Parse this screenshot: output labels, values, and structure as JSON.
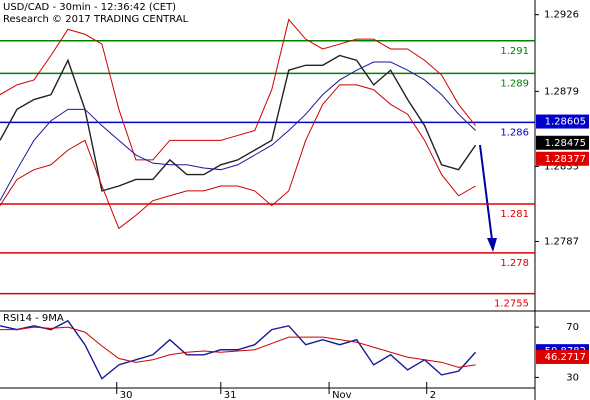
{
  "chart_data": [
    {
      "type": "line",
      "title": "USD/CAD - 30min - 12:36:42 (CET)",
      "subtitle": "Research © 2017 TRADING CENTRAL",
      "x": [
        0,
        8,
        16,
        24,
        32,
        40,
        48,
        56,
        64,
        72,
        80,
        88,
        96,
        104,
        112,
        120,
        128,
        136,
        144,
        152,
        160,
        168,
        176,
        184,
        192,
        200,
        208,
        216,
        224
      ],
      "xlim": [
        0,
        252
      ],
      "ylim": [
        1.2745,
        1.2935
      ],
      "yticks": [
        1.2926,
        1.2879,
        1.2833,
        1.2787
      ],
      "series": [
        {
          "name": "Price",
          "color": "#222222",
          "values": [
            1.2849,
            1.2868,
            1.2874,
            1.2877,
            1.2898,
            1.2868,
            1.2818,
            1.2821,
            1.2825,
            1.2825,
            1.2837,
            1.2828,
            1.2828,
            1.2834,
            1.2837,
            1.2843,
            1.2849,
            1.2892,
            1.2895,
            1.2895,
            1.2901,
            1.2898,
            1.2883,
            1.2892,
            1.2874,
            1.2858,
            1.2834,
            1.2831,
            1.2846
          ]
        },
        {
          "name": "Upper band",
          "color": "#cc0000",
          "values": [
            1.2877,
            1.2883,
            1.2886,
            1.2901,
            1.2917,
            1.2914,
            1.2908,
            1.2868,
            1.2837,
            1.2837,
            1.2849,
            1.2849,
            1.2849,
            1.2849,
            1.2852,
            1.2855,
            1.288,
            1.2923,
            1.2911,
            1.2905,
            1.2908,
            1.2911,
            1.2911,
            1.2905,
            1.2905,
            1.2898,
            1.2889,
            1.2871,
            1.2858
          ]
        },
        {
          "name": "Lower band",
          "color": "#cc0000",
          "values": [
            1.2809,
            1.2825,
            1.2831,
            1.2834,
            1.2843,
            1.2849,
            1.2821,
            1.2795,
            1.2803,
            1.2812,
            1.2815,
            1.2818,
            1.2818,
            1.2821,
            1.2821,
            1.2818,
            1.2809,
            1.2818,
            1.2849,
            1.2871,
            1.2883,
            1.2883,
            1.288,
            1.2871,
            1.2865,
            1.2849,
            1.2828,
            1.2815,
            1.2821
          ]
        },
        {
          "name": "Moving average",
          "color": "#1a1a99",
          "values": [
            1.2812,
            1.2831,
            1.2849,
            1.2861,
            1.2868,
            1.2868,
            1.2858,
            1.2849,
            1.284,
            1.2835,
            1.2834,
            1.2834,
            1.2832,
            1.2831,
            1.2834,
            1.284,
            1.2846,
            1.2855,
            1.2865,
            1.2877,
            1.2886,
            1.2892,
            1.2897,
            1.2897,
            1.2892,
            1.2886,
            1.2877,
            1.2865,
            1.2855
          ]
        }
      ],
      "levels": [
        {
          "value": 1.291,
          "color": "#008000"
        },
        {
          "value": 1.289,
          "color": "#008000"
        },
        {
          "value": 1.286,
          "color": "#0000cc"
        },
        {
          "value": 1.281,
          "color": "#dd0000"
        },
        {
          "value": 1.278,
          "color": "#dd0000"
        },
        {
          "value": 1.2755,
          "color": "#dd0000"
        }
      ],
      "price_tags": [
        {
          "value": 1.28605,
          "color": "#0000cc"
        },
        {
          "value": 1.28475,
          "color": "#000000"
        },
        {
          "value": 1.28377,
          "color": "#dd0000"
        }
      ]
    },
    {
      "type": "line",
      "title": "RSI14 - 9MA",
      "x": [
        0,
        8,
        16,
        24,
        32,
        40,
        48,
        56,
        64,
        72,
        80,
        88,
        96,
        104,
        112,
        120,
        128,
        136,
        144,
        152,
        160,
        168,
        176,
        184,
        192,
        200,
        208,
        216,
        224
      ],
      "xlim": [
        0,
        252
      ],
      "xticks": [
        {
          "value": 55,
          "label": "30"
        },
        {
          "value": 104,
          "label": "31"
        },
        {
          "value": 155,
          "label": "Nov"
        },
        {
          "value": 201,
          "label": "2"
        }
      ],
      "ylim": [
        20,
        82
      ],
      "yticks": [
        70,
        30
      ],
      "series": [
        {
          "name": "RSI",
          "color": "#1a1a99",
          "values": [
            71,
            68,
            71,
            68,
            75,
            56,
            29,
            40,
            44,
            48,
            60,
            48,
            48,
            52,
            52,
            56,
            68,
            71,
            56,
            60,
            56,
            60,
            40,
            48,
            36,
            44,
            32,
            35,
            50
          ]
        },
        {
          "name": "MA",
          "color": "#cc0000",
          "values": [
            68,
            68,
            70,
            69,
            70,
            66,
            55,
            45,
            42,
            44,
            48,
            50,
            51,
            50,
            51,
            52,
            57,
            62,
            62,
            62,
            60,
            58,
            54,
            50,
            46,
            44,
            42,
            38,
            40
          ]
        }
      ],
      "price_tags": [
        {
          "value": 50.8782,
          "color": "#0000cc"
        },
        {
          "value": 46.2717,
          "color": "#dd0000"
        }
      ]
    }
  ]
}
